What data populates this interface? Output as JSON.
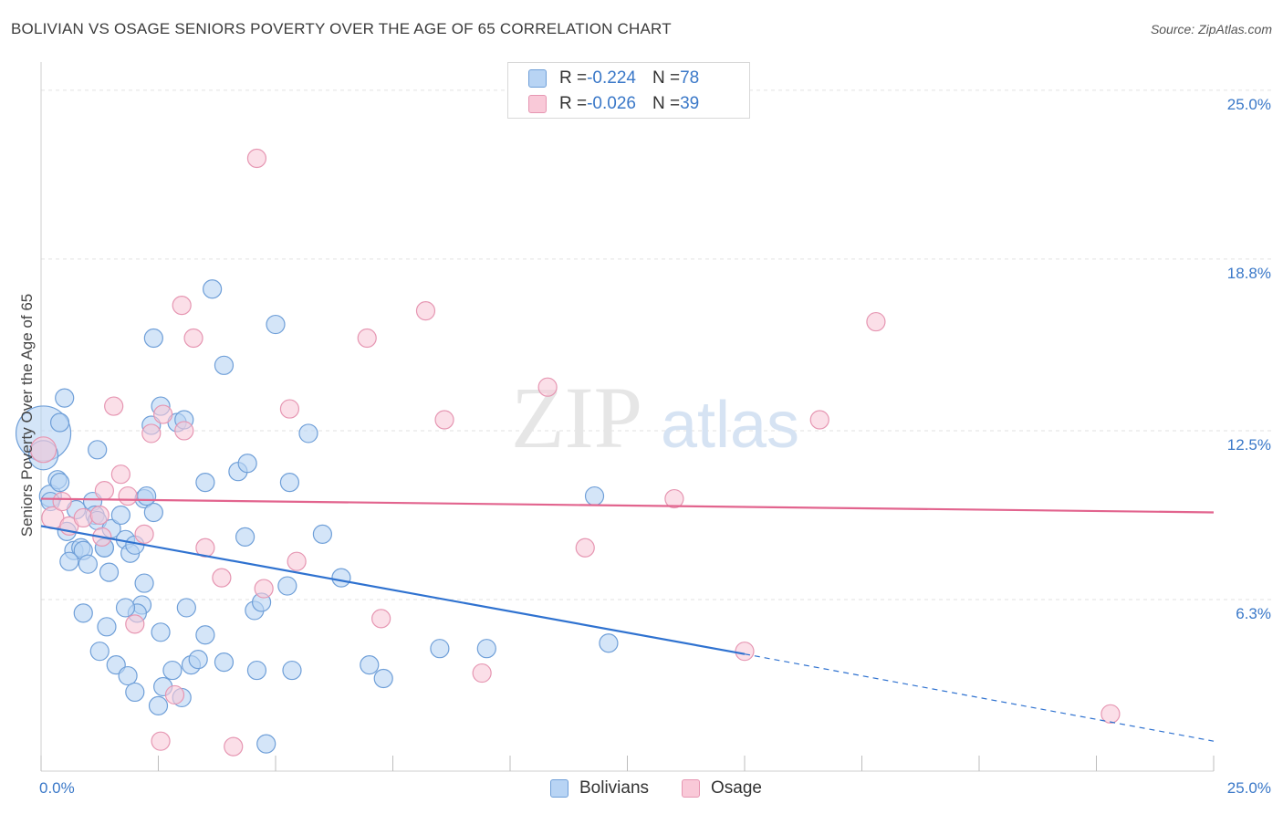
{
  "header": {
    "title": "BOLIVIAN VS OSAGE SENIORS POVERTY OVER THE AGE OF 65 CORRELATION CHART",
    "source": "Source: ZipAtlas.com"
  },
  "watermark": {
    "zip": "ZIP",
    "atlas": "atlas"
  },
  "legend_top": {
    "rows": [
      {
        "r_label": "R = ",
        "r_value": "-0.224",
        "n_label": "N = ",
        "n_value": "78"
      },
      {
        "r_label": "R = ",
        "r_value": "-0.026",
        "n_label": "N = ",
        "n_value": "39"
      }
    ]
  },
  "legend_bottom": {
    "items": [
      "Bolivians",
      "Osage"
    ]
  },
  "colors": {
    "bolivians_fill": "#b8d4f4",
    "bolivians_stroke": "#6f9fd8",
    "bolivians_line": "#2f72d0",
    "osage_fill": "#f9c9d8",
    "osage_stroke": "#e696b2",
    "osage_line": "#e2648e",
    "axis_text": "#3a78c8",
    "grid": "#e2e2e2"
  },
  "chart_data": {
    "type": "scatter",
    "title": "BOLIVIAN VS OSAGE SENIORS POVERTY OVER THE AGE OF 65 CORRELATION CHART",
    "xlabel": "",
    "ylabel": "Seniors Poverty Over the Age of 65",
    "xlim": [
      0,
      25
    ],
    "ylim": [
      0,
      25.7
    ],
    "x_tick_labels": [
      "0.0%",
      "25.0%"
    ],
    "y_ticks": [
      6.3,
      12.5,
      18.8,
      25.0
    ],
    "y_tick_labels": [
      "6.3%",
      "12.5%",
      "18.8%",
      "25.0%"
    ],
    "grid": true,
    "legend_placement": "top-center",
    "series": [
      {
        "name": "Bolivians",
        "r": -0.224,
        "n": 78,
        "trend": {
          "x0": 0,
          "y0": 9.0,
          "x1": 15,
          "y1": 4.3,
          "dash_to_x": 25,
          "dash_to_y": 1.1
        },
        "points": [
          [
            0.05,
            12.4,
            30
          ],
          [
            0.05,
            11.6,
            16
          ],
          [
            0.2,
            10.1,
            12
          ],
          [
            0.4,
            12.8,
            10
          ],
          [
            0.5,
            13.7,
            10
          ],
          [
            0.35,
            10.7,
            10
          ],
          [
            0.4,
            10.6,
            10
          ],
          [
            0.2,
            9.9,
            10
          ],
          [
            0.55,
            8.8,
            10
          ],
          [
            0.75,
            9.6,
            10
          ],
          [
            1.1,
            9.9,
            10
          ],
          [
            1.15,
            9.4,
            10
          ],
          [
            1.2,
            9.2,
            10
          ],
          [
            0.7,
            8.1,
            10
          ],
          [
            0.85,
            8.2,
            10
          ],
          [
            0.9,
            8.1,
            10
          ],
          [
            0.6,
            7.7,
            10
          ],
          [
            1.0,
            7.6,
            10
          ],
          [
            1.35,
            8.2,
            10
          ],
          [
            1.5,
            8.9,
            10
          ],
          [
            1.2,
            11.8,
            10
          ],
          [
            1.7,
            9.4,
            10
          ],
          [
            1.8,
            8.5,
            10
          ],
          [
            1.9,
            8.0,
            10
          ],
          [
            2.2,
            10.0,
            10
          ],
          [
            2.4,
            9.5,
            10
          ],
          [
            1.45,
            7.3,
            10
          ],
          [
            1.4,
            5.3,
            10
          ],
          [
            0.9,
            5.8,
            10
          ],
          [
            1.25,
            4.4,
            10
          ],
          [
            1.6,
            3.9,
            10
          ],
          [
            1.85,
            3.5,
            10
          ],
          [
            2.0,
            2.9,
            10
          ],
          [
            2.15,
            6.1,
            10
          ],
          [
            2.05,
            5.8,
            10
          ],
          [
            2.2,
            6.9,
            10
          ],
          [
            2.55,
            5.1,
            10
          ],
          [
            2.6,
            3.1,
            10
          ],
          [
            2.5,
            2.4,
            10
          ],
          [
            2.8,
            3.7,
            10
          ],
          [
            3.2,
            3.9,
            10
          ],
          [
            3.35,
            4.1,
            10
          ],
          [
            3.5,
            5.0,
            10
          ],
          [
            3.1,
            6.0,
            10
          ],
          [
            2.9,
            12.8,
            10
          ],
          [
            3.5,
            10.6,
            10
          ],
          [
            3.65,
            17.7,
            10
          ],
          [
            3.9,
            14.9,
            10
          ],
          [
            4.2,
            11.0,
            10
          ],
          [
            4.4,
            11.3,
            10
          ],
          [
            4.35,
            8.6,
            10
          ],
          [
            4.55,
            5.9,
            10
          ],
          [
            4.7,
            6.2,
            10
          ],
          [
            4.6,
            3.7,
            10
          ],
          [
            4.8,
            1.0,
            10
          ],
          [
            5.0,
            16.4,
            10
          ],
          [
            5.3,
            10.6,
            10
          ],
          [
            5.25,
            6.8,
            10
          ],
          [
            5.35,
            3.7,
            10
          ],
          [
            5.7,
            12.4,
            10
          ],
          [
            6.0,
            8.7,
            10
          ],
          [
            6.4,
            7.1,
            10
          ],
          [
            7.0,
            3.9,
            10
          ],
          [
            7.3,
            3.4,
            10
          ],
          [
            8.5,
            4.5,
            10
          ],
          [
            9.5,
            4.5,
            10
          ],
          [
            11.8,
            10.1,
            10
          ],
          [
            12.1,
            4.7,
            10
          ],
          [
            2.4,
            15.9,
            10
          ],
          [
            2.55,
            13.4,
            10
          ],
          [
            2.35,
            12.7,
            10
          ],
          [
            3.05,
            12.9,
            10
          ],
          [
            3.9,
            4.0,
            10
          ],
          [
            3.0,
            2.7,
            10
          ],
          [
            1.35,
            8.2,
            10
          ],
          [
            2.25,
            10.1,
            10
          ],
          [
            1.8,
            6.0,
            10
          ],
          [
            2.0,
            8.3,
            10
          ]
        ]
      },
      {
        "name": "Osage",
        "r": -0.026,
        "n": 39,
        "trend": {
          "x0": 0,
          "y0": 10.0,
          "x1": 25,
          "y1": 9.5
        },
        "points": [
          [
            0.05,
            11.8,
            14
          ],
          [
            0.25,
            9.3,
            12
          ],
          [
            0.45,
            9.9,
            10
          ],
          [
            0.6,
            9.0,
            10
          ],
          [
            0.9,
            9.3,
            10
          ],
          [
            1.25,
            9.4,
            10
          ],
          [
            1.3,
            8.6,
            10
          ],
          [
            1.35,
            10.3,
            10
          ],
          [
            1.55,
            13.4,
            10
          ],
          [
            1.7,
            10.9,
            10
          ],
          [
            1.85,
            10.1,
            10
          ],
          [
            2.0,
            5.4,
            10
          ],
          [
            2.2,
            8.7,
            10
          ],
          [
            2.35,
            12.4,
            10
          ],
          [
            2.6,
            13.1,
            10
          ],
          [
            2.55,
            1.1,
            10
          ],
          [
            2.85,
            2.8,
            10
          ],
          [
            3.0,
            17.1,
            10
          ],
          [
            3.05,
            12.5,
            10
          ],
          [
            3.25,
            15.9,
            10
          ],
          [
            3.5,
            8.2,
            10
          ],
          [
            3.85,
            7.1,
            10
          ],
          [
            4.1,
            0.9,
            10
          ],
          [
            4.75,
            6.7,
            10
          ],
          [
            4.6,
            22.5,
            10
          ],
          [
            5.3,
            13.3,
            10
          ],
          [
            5.45,
            7.7,
            10
          ],
          [
            6.95,
            15.9,
            10
          ],
          [
            7.25,
            5.6,
            10
          ],
          [
            8.2,
            16.9,
            10
          ],
          [
            8.6,
            12.9,
            10
          ],
          [
            9.4,
            3.6,
            10
          ],
          [
            10.8,
            14.1,
            10
          ],
          [
            11.6,
            8.2,
            10
          ],
          [
            13.5,
            10.0,
            10
          ],
          [
            15.0,
            4.4,
            10
          ],
          [
            16.6,
            12.9,
            10
          ],
          [
            17.8,
            16.5,
            10
          ],
          [
            22.8,
            2.1,
            10
          ]
        ]
      }
    ]
  }
}
